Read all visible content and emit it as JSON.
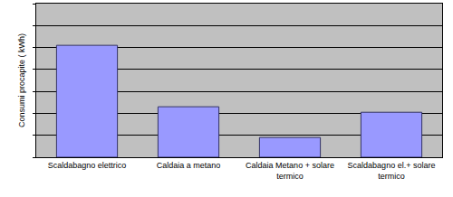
{
  "chart_data": {
    "type": "bar",
    "y_label": "Consumi procapite ( kWh)",
    "categories": [
      "Scaldabagno elettrico",
      "Caldaia a metano",
      "Caldaia Metano + solare termico",
      "Scaldabagno el.+ solare termico"
    ],
    "values": [
      5.1,
      2.3,
      0.9,
      2.05
    ],
    "color": "#9999ff",
    "ylim": [
      0,
      7
    ],
    "yticks": [
      0,
      1,
      2,
      3,
      4,
      5,
      6,
      7
    ],
    "grid": true,
    "tick_labels": "x"
  }
}
